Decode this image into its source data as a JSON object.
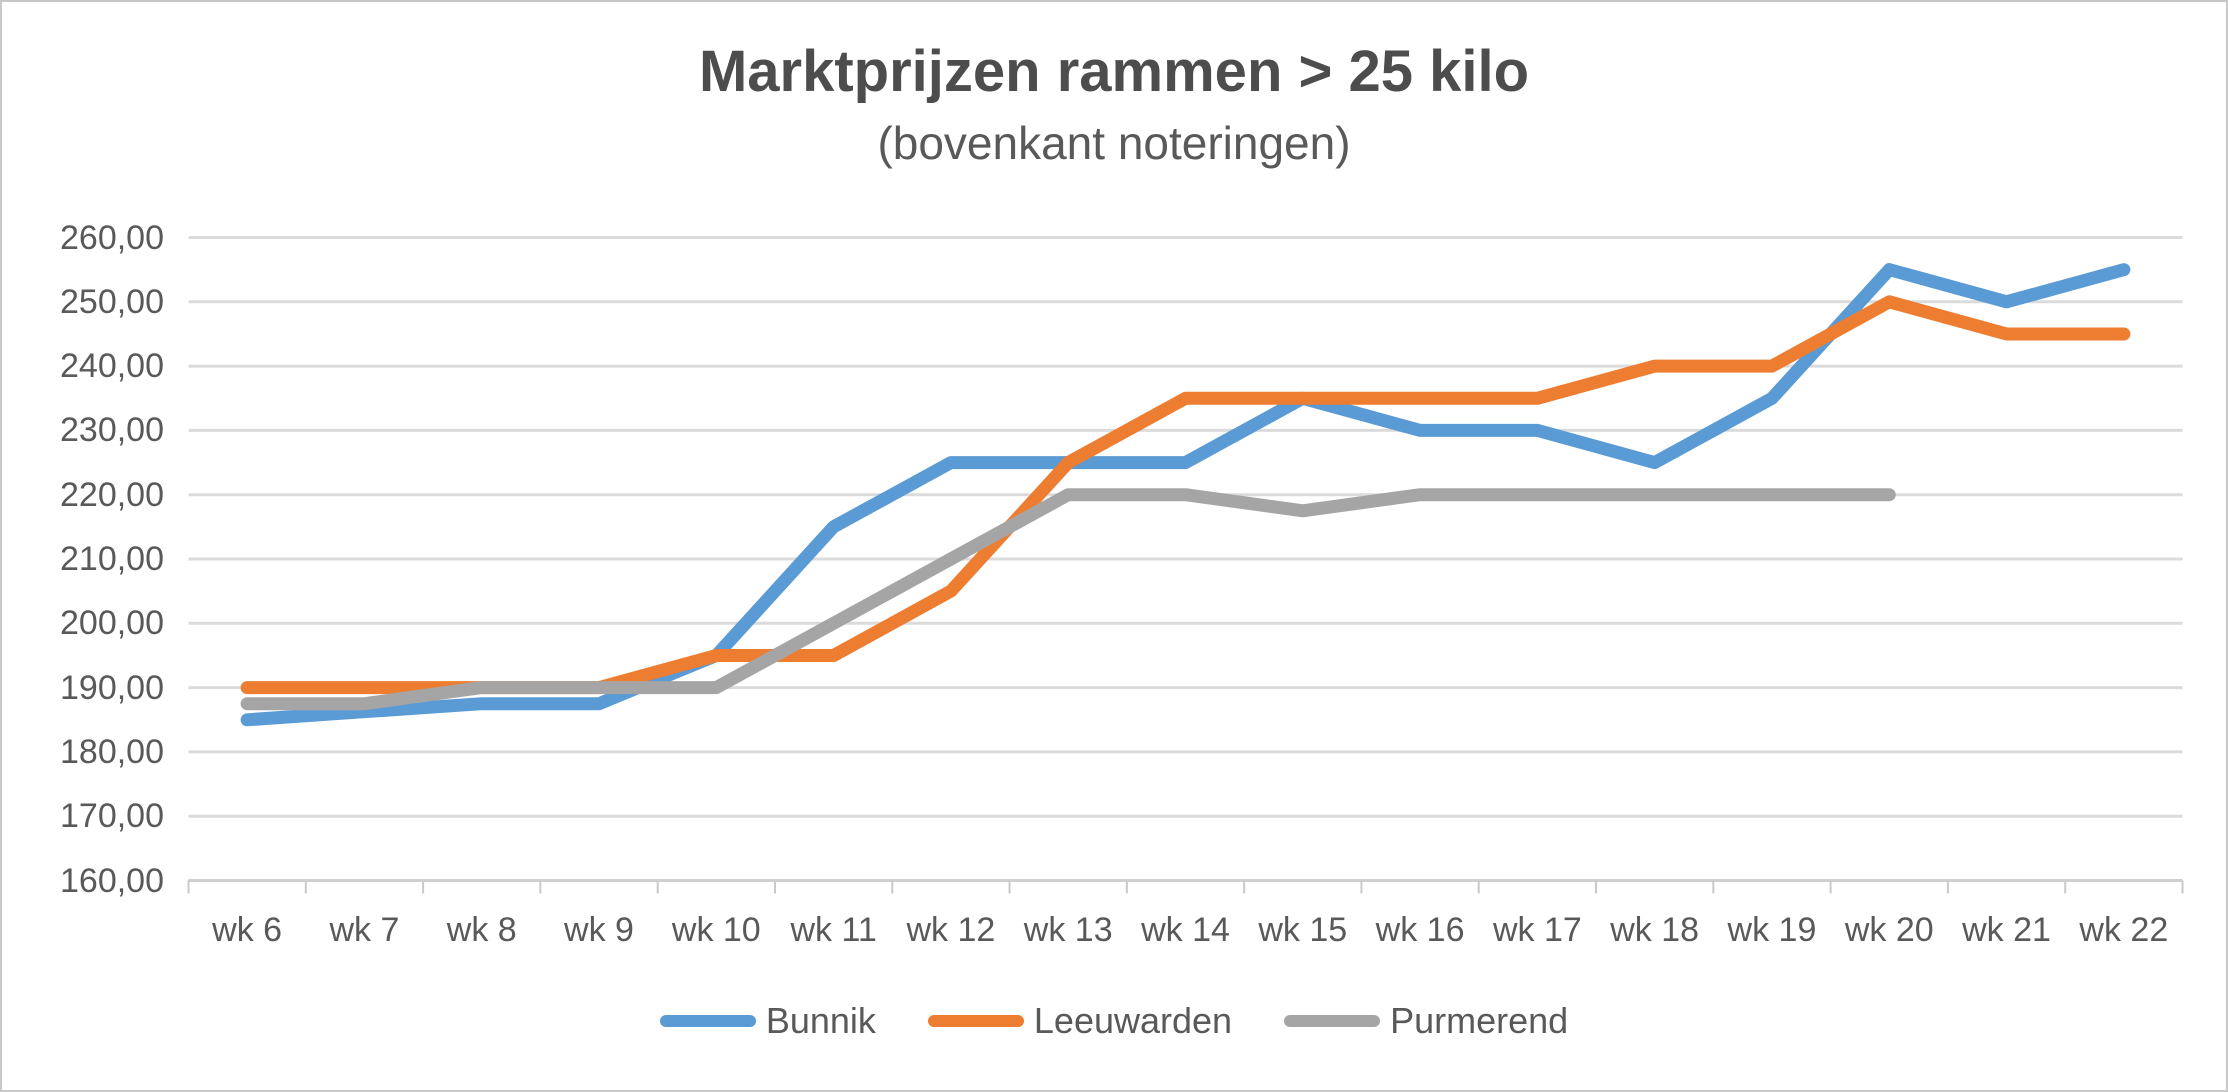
{
  "title": "Marktprijzen rammen > 25 kilo",
  "subtitle": "(bovenkant noteringen)",
  "colors": {
    "background": "#ffffff",
    "border": "#c8c8c8",
    "gridline": "#dbdbdb",
    "axis_line": "#cfcfcf",
    "tick_mark": "#c9c9c9",
    "text": "#595959",
    "title_text": "#4d4d4d",
    "series_bunnik": "#5b9bd5",
    "series_leeuwarden": "#ed7d31",
    "series_purmerend": "#a5a5a5"
  },
  "chart_data": {
    "type": "line",
    "title": "Marktprijzen rammen > 25 kilo",
    "subtitle": "(bovenkant noteringen)",
    "categories": [
      "wk 6",
      "wk 7",
      "wk 8",
      "wk 9",
      "wk 10",
      "wk 11",
      "wk 12",
      "wk 13",
      "wk 14",
      "wk 15",
      "wk 16",
      "wk 17",
      "wk 18",
      "wk 19",
      "wk 20",
      "wk 21",
      "wk 22"
    ],
    "y_ticks": [
      "260,00",
      "250,00",
      "240,00",
      "230,00",
      "220,00",
      "210,00",
      "200,00",
      "190,00",
      "180,00",
      "170,00",
      "160,00"
    ],
    "ylim": [
      160,
      260
    ],
    "y_step": 10,
    "grid": "horizontal",
    "legend_position": "bottom",
    "series": [
      {
        "name": "Bunnik",
        "color": "#5b9bd5",
        "values": [
          185,
          186.25,
          187.5,
          187.5,
          195,
          215,
          225,
          225,
          225,
          235,
          230,
          230,
          225,
          235,
          255,
          250,
          255
        ]
      },
      {
        "name": "Leeuwarden",
        "color": "#ed7d31",
        "values": [
          190,
          190,
          190,
          190,
          195,
          195,
          205,
          225,
          235,
          235,
          235,
          235,
          240,
          240,
          250,
          245,
          245
        ]
      },
      {
        "name": "Purmerend",
        "color": "#a5a5a5",
        "values": [
          187.5,
          187.5,
          190,
          190,
          190,
          200,
          210,
          220,
          220,
          217.5,
          220,
          220,
          220,
          220,
          220
        ]
      }
    ]
  }
}
